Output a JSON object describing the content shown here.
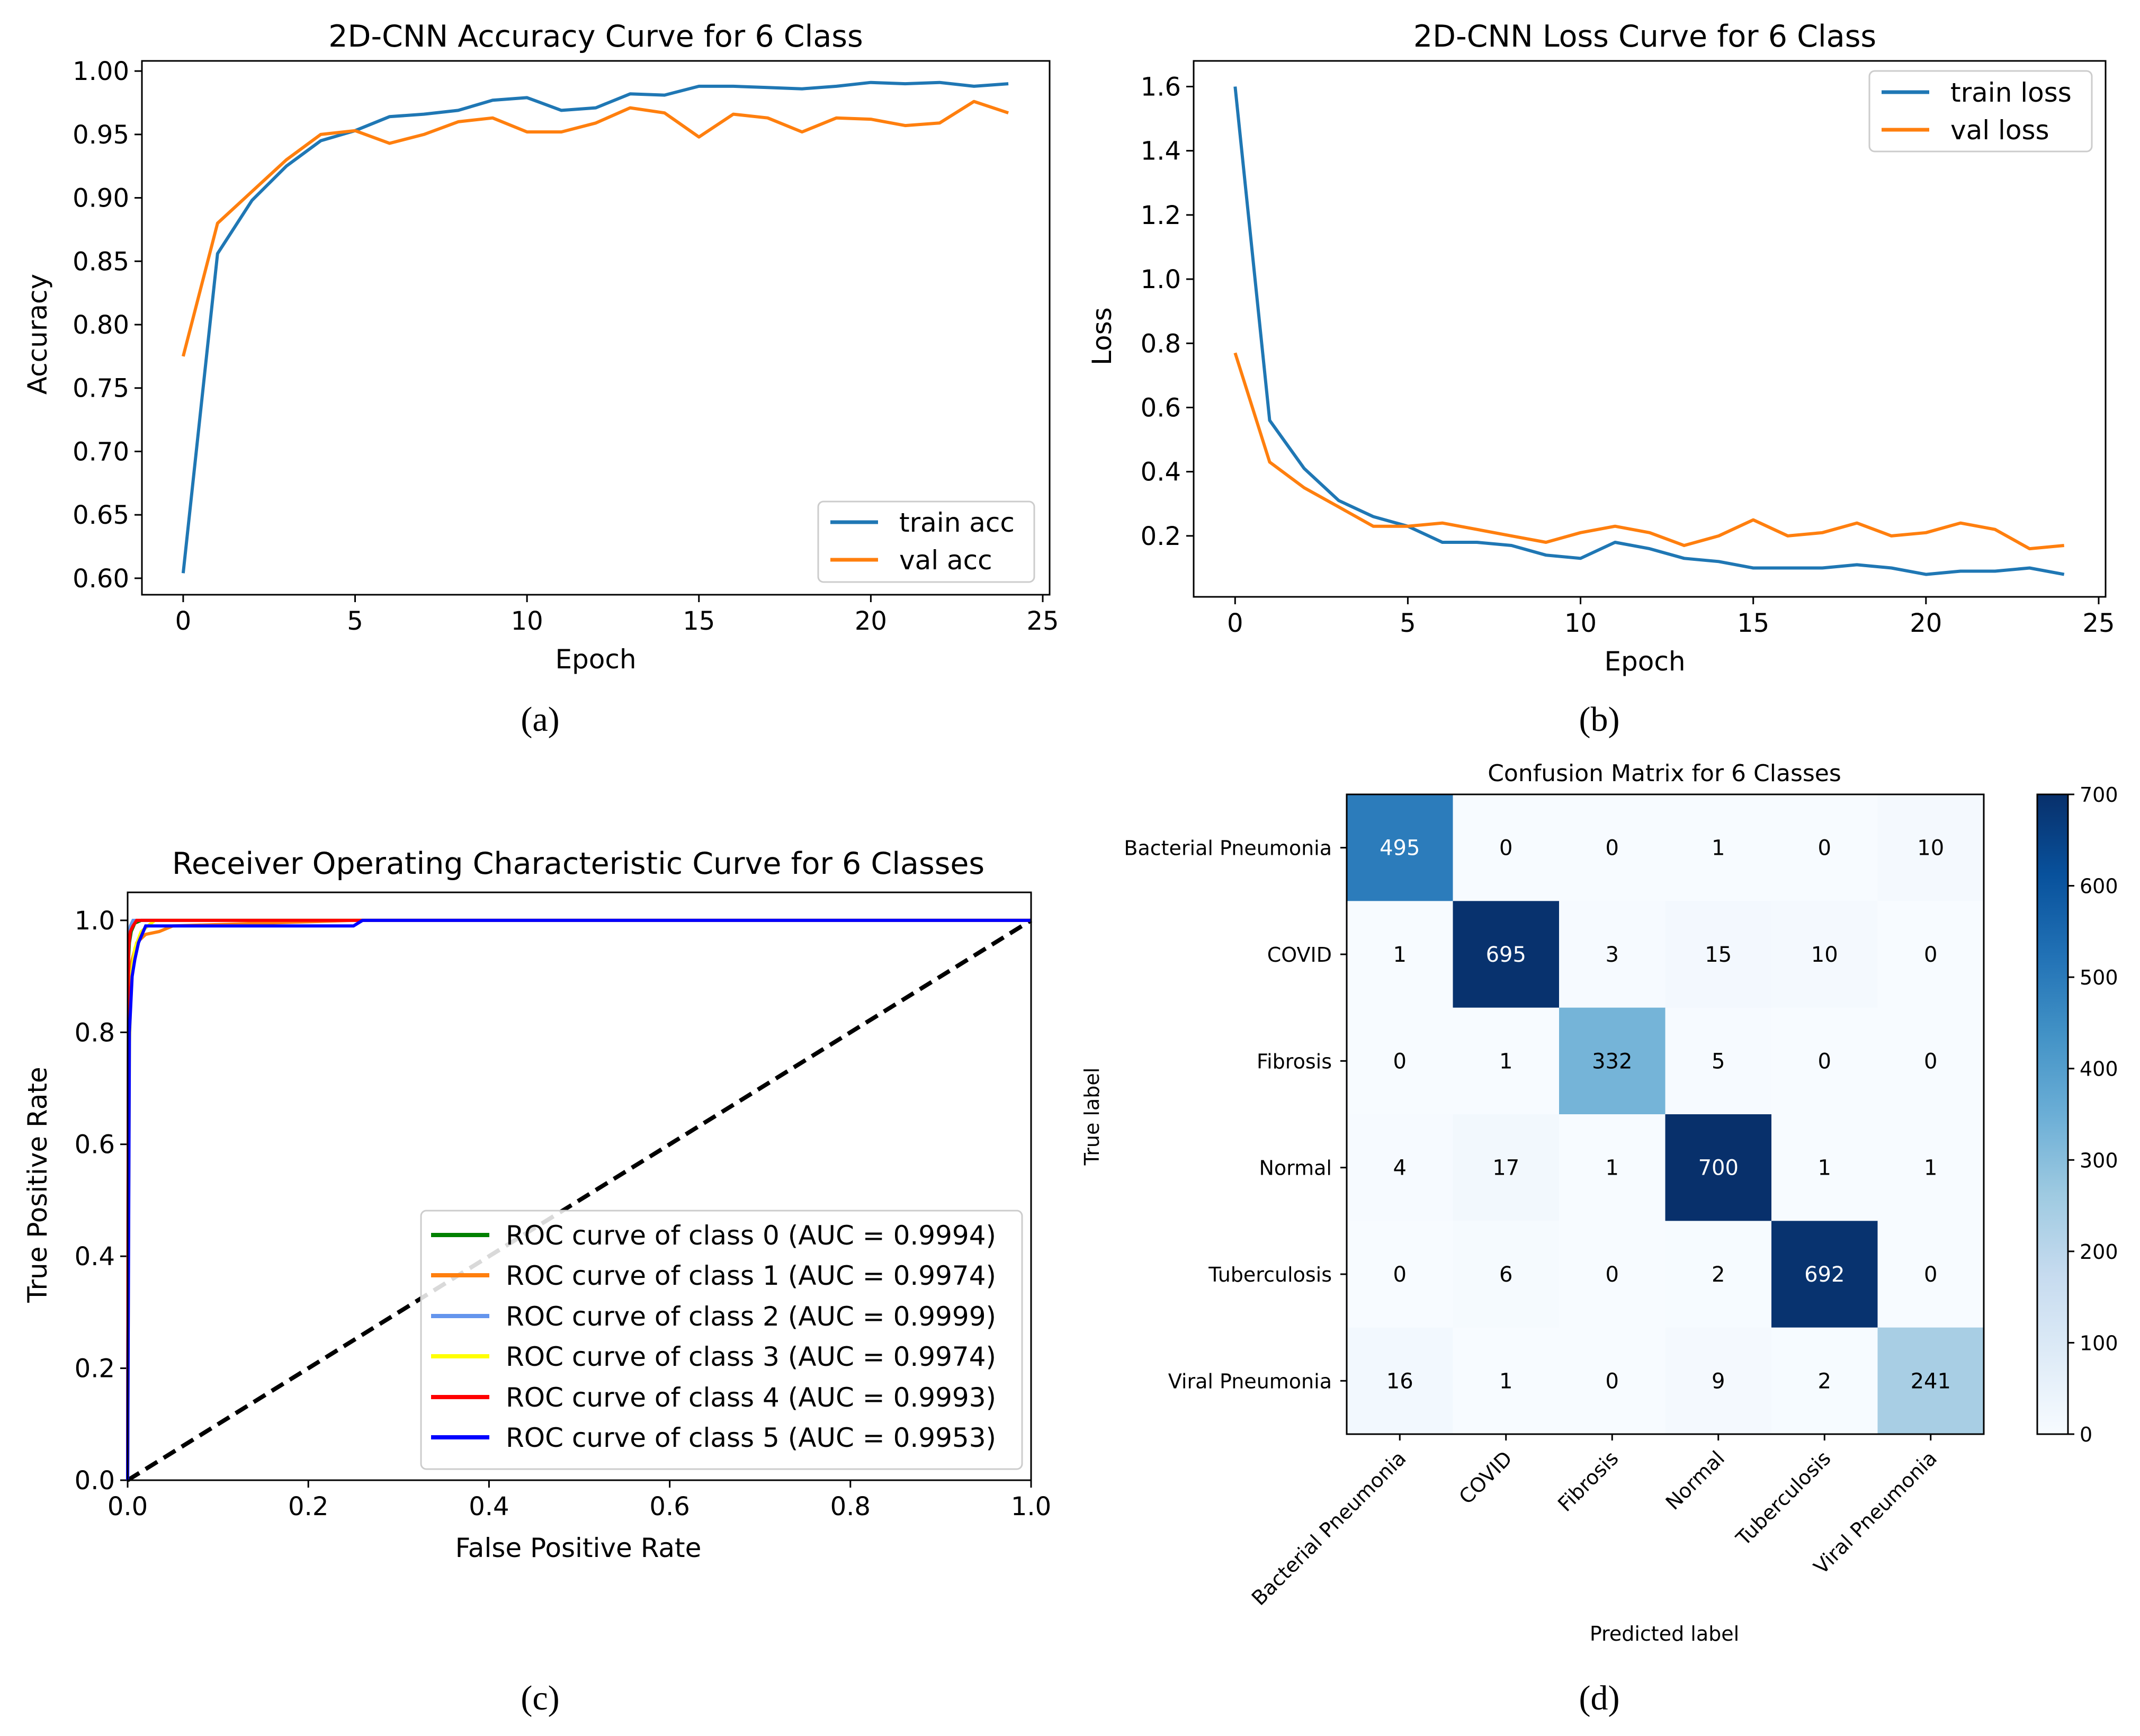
{
  "panel_labels": {
    "a": "(a)",
    "b": "(b)",
    "c": "(c)",
    "d": "(d)"
  },
  "colors": {
    "train": "#1f77b4",
    "val": "#ff7f0e",
    "roc": [
      "#008000",
      "#ff7f0e",
      "#6495ed",
      "#ffff00",
      "#ff0000",
      "#0000ff"
    ],
    "cmap_low": "#f7fbff",
    "cmap_high": "#08306b"
  },
  "chart_data": [
    {
      "id": "a",
      "type": "line",
      "title": "2D-CNN Accuracy Curve for 6 Class",
      "xlabel": "Epoch",
      "ylabel": "Accuracy",
      "xlim": [
        -1.2,
        25.2
      ],
      "ylim": [
        0.587,
        1.008
      ],
      "xticks": [
        0,
        5,
        10,
        15,
        20,
        25
      ],
      "xtick_labels": [
        "0",
        "5",
        "10",
        "15",
        "20",
        "25"
      ],
      "yticks": [
        0.6,
        0.65,
        0.7,
        0.75,
        0.8,
        0.85,
        0.9,
        0.95,
        1.0
      ],
      "ytick_labels": [
        "0.60",
        "0.65",
        "0.70",
        "0.75",
        "0.80",
        "0.85",
        "0.90",
        "0.95",
        "1.00"
      ],
      "legend_position": "lower-right",
      "x": [
        0,
        1,
        2,
        3,
        4,
        5,
        6,
        7,
        8,
        9,
        10,
        11,
        12,
        13,
        14,
        15,
        16,
        17,
        18,
        19,
        20,
        21,
        22,
        23,
        24
      ],
      "series": [
        {
          "name": "train acc",
          "values": [
            0.604,
            0.856,
            0.898,
            0.925,
            0.945,
            0.953,
            0.964,
            0.966,
            0.969,
            0.977,
            0.979,
            0.969,
            0.971,
            0.982,
            0.981,
            0.988,
            0.988,
            0.987,
            0.986,
            0.988,
            0.991,
            0.99,
            0.991,
            0.988,
            0.99
          ]
        },
        {
          "name": "val acc",
          "values": [
            0.775,
            0.88,
            0.905,
            0.93,
            0.95,
            0.953,
            0.943,
            0.95,
            0.96,
            0.963,
            0.952,
            0.952,
            0.959,
            0.971,
            0.967,
            0.948,
            0.966,
            0.963,
            0.952,
            0.963,
            0.962,
            0.957,
            0.959,
            0.976,
            0.967
          ]
        }
      ]
    },
    {
      "id": "b",
      "type": "line",
      "title": "2D-CNN Loss Curve for 6 Class",
      "xlabel": "Epoch",
      "ylabel": "Loss",
      "xlim": [
        -1.2,
        25.2
      ],
      "ylim": [
        0.01,
        1.68
      ],
      "xticks": [
        0,
        5,
        10,
        15,
        20,
        25
      ],
      "xtick_labels": [
        "0",
        "5",
        "10",
        "15",
        "20",
        "25"
      ],
      "yticks": [
        0.2,
        0.4,
        0.6,
        0.8,
        1.0,
        1.2,
        1.4,
        1.6
      ],
      "ytick_labels": [
        "0.2",
        "0.4",
        "0.6",
        "0.8",
        "1.0",
        "1.2",
        "1.4",
        "1.6"
      ],
      "legend_position": "upper-right",
      "x": [
        0,
        1,
        2,
        3,
        4,
        5,
        6,
        7,
        8,
        9,
        10,
        11,
        12,
        13,
        14,
        15,
        16,
        17,
        18,
        19,
        20,
        21,
        22,
        23,
        24
      ],
      "series": [
        {
          "name": "train loss",
          "values": [
            1.6,
            0.56,
            0.41,
            0.31,
            0.26,
            0.23,
            0.18,
            0.18,
            0.17,
            0.14,
            0.13,
            0.18,
            0.16,
            0.13,
            0.12,
            0.1,
            0.1,
            0.1,
            0.11,
            0.1,
            0.08,
            0.09,
            0.09,
            0.1,
            0.08
          ]
        },
        {
          "name": "val loss",
          "values": [
            0.77,
            0.43,
            0.35,
            0.29,
            0.23,
            0.23,
            0.24,
            0.22,
            0.2,
            0.18,
            0.21,
            0.23,
            0.21,
            0.17,
            0.2,
            0.25,
            0.2,
            0.21,
            0.24,
            0.2,
            0.21,
            0.24,
            0.22,
            0.16,
            0.17
          ]
        }
      ]
    },
    {
      "id": "c",
      "type": "line",
      "title": "Receiver Operating Characteristic Curve for 6 Classes",
      "xlabel": "False Positive Rate",
      "ylabel": "True Positive Rate",
      "xlim": [
        0,
        1
      ],
      "ylim": [
        0,
        1.05
      ],
      "xticks": [
        0,
        0.2,
        0.4,
        0.6,
        0.8,
        1.0
      ],
      "xtick_labels": [
        "0.0",
        "0.2",
        "0.4",
        "0.6",
        "0.8",
        "1.0"
      ],
      "yticks": [
        0,
        0.2,
        0.4,
        0.6,
        0.8,
        1.0
      ],
      "ytick_labels": [
        "0.0",
        "0.2",
        "0.4",
        "0.6",
        "0.8",
        "1.0"
      ],
      "legend_position": "lower-right",
      "diagonal": [
        [
          0,
          0
        ],
        [
          1,
          1
        ]
      ],
      "series": [
        {
          "name": "ROC curve of class 0 (AUC = 0.9994)",
          "x": [
            0,
            0.001,
            0.002,
            0.004,
            0.008,
            0.015,
            1
          ],
          "y": [
            0,
            0.93,
            0.96,
            0.98,
            0.995,
            1,
            1
          ]
        },
        {
          "name": "ROC curve of class 1 (AUC = 0.9974)",
          "x": [
            0,
            0.002,
            0.005,
            0.01,
            0.02,
            0.035,
            0.05,
            0.25,
            1
          ],
          "y": [
            0,
            0.9,
            0.93,
            0.96,
            0.975,
            0.98,
            0.99,
            1,
            1
          ]
        },
        {
          "name": "ROC curve of class 2 (AUC = 0.9999)",
          "x": [
            0,
            0.001,
            0.003,
            0.006,
            1
          ],
          "y": [
            0,
            0.97,
            0.99,
            1,
            1
          ]
        },
        {
          "name": "ROC curve of class 3 (AUC = 0.9974)",
          "x": [
            0,
            0.001,
            0.002,
            0.004,
            0.008,
            0.015,
            0.03,
            1
          ],
          "y": [
            0,
            0.45,
            0.78,
            0.9,
            0.95,
            0.98,
            1,
            1
          ]
        },
        {
          "name": "ROC curve of class 4 (AUC = 0.9993)",
          "x": [
            0,
            0.001,
            0.003,
            0.006,
            0.01,
            1
          ],
          "y": [
            0,
            0.95,
            0.98,
            0.99,
            1,
            1
          ]
        },
        {
          "name": "ROC curve of class 5 (AUC = 0.9953)",
          "x": [
            0,
            0.002,
            0.005,
            0.008,
            0.012,
            0.02,
            0.25,
            0.26,
            1
          ],
          "y": [
            0,
            0.8,
            0.9,
            0.93,
            0.96,
            0.99,
            0.99,
            1,
            1
          ]
        }
      ]
    },
    {
      "id": "d",
      "type": "heatmap",
      "title": "Confusion Matrix for 6 Classes",
      "xlabel": "Predicted label",
      "ylabel": "True label",
      "labels": [
        "Bacterial Pneumonia",
        "COVID",
        "Fibrosis",
        "Normal",
        "Tuberculosis",
        "Viral Pneumonia"
      ],
      "matrix": [
        [
          495,
          0,
          0,
          1,
          0,
          10
        ],
        [
          1,
          695,
          3,
          15,
          10,
          0
        ],
        [
          0,
          1,
          332,
          5,
          0,
          0
        ],
        [
          4,
          17,
          1,
          700,
          1,
          1
        ],
        [
          0,
          6,
          0,
          2,
          692,
          0
        ],
        [
          16,
          1,
          0,
          9,
          2,
          241
        ]
      ],
      "vmin": 0,
      "vmax": 700,
      "colorbar_ticks": [
        0,
        100,
        200,
        300,
        400,
        500,
        600,
        700
      ],
      "colorbar_tick_labels": [
        "0",
        "100",
        "200",
        "300",
        "400",
        "500",
        "600",
        "700"
      ]
    }
  ]
}
